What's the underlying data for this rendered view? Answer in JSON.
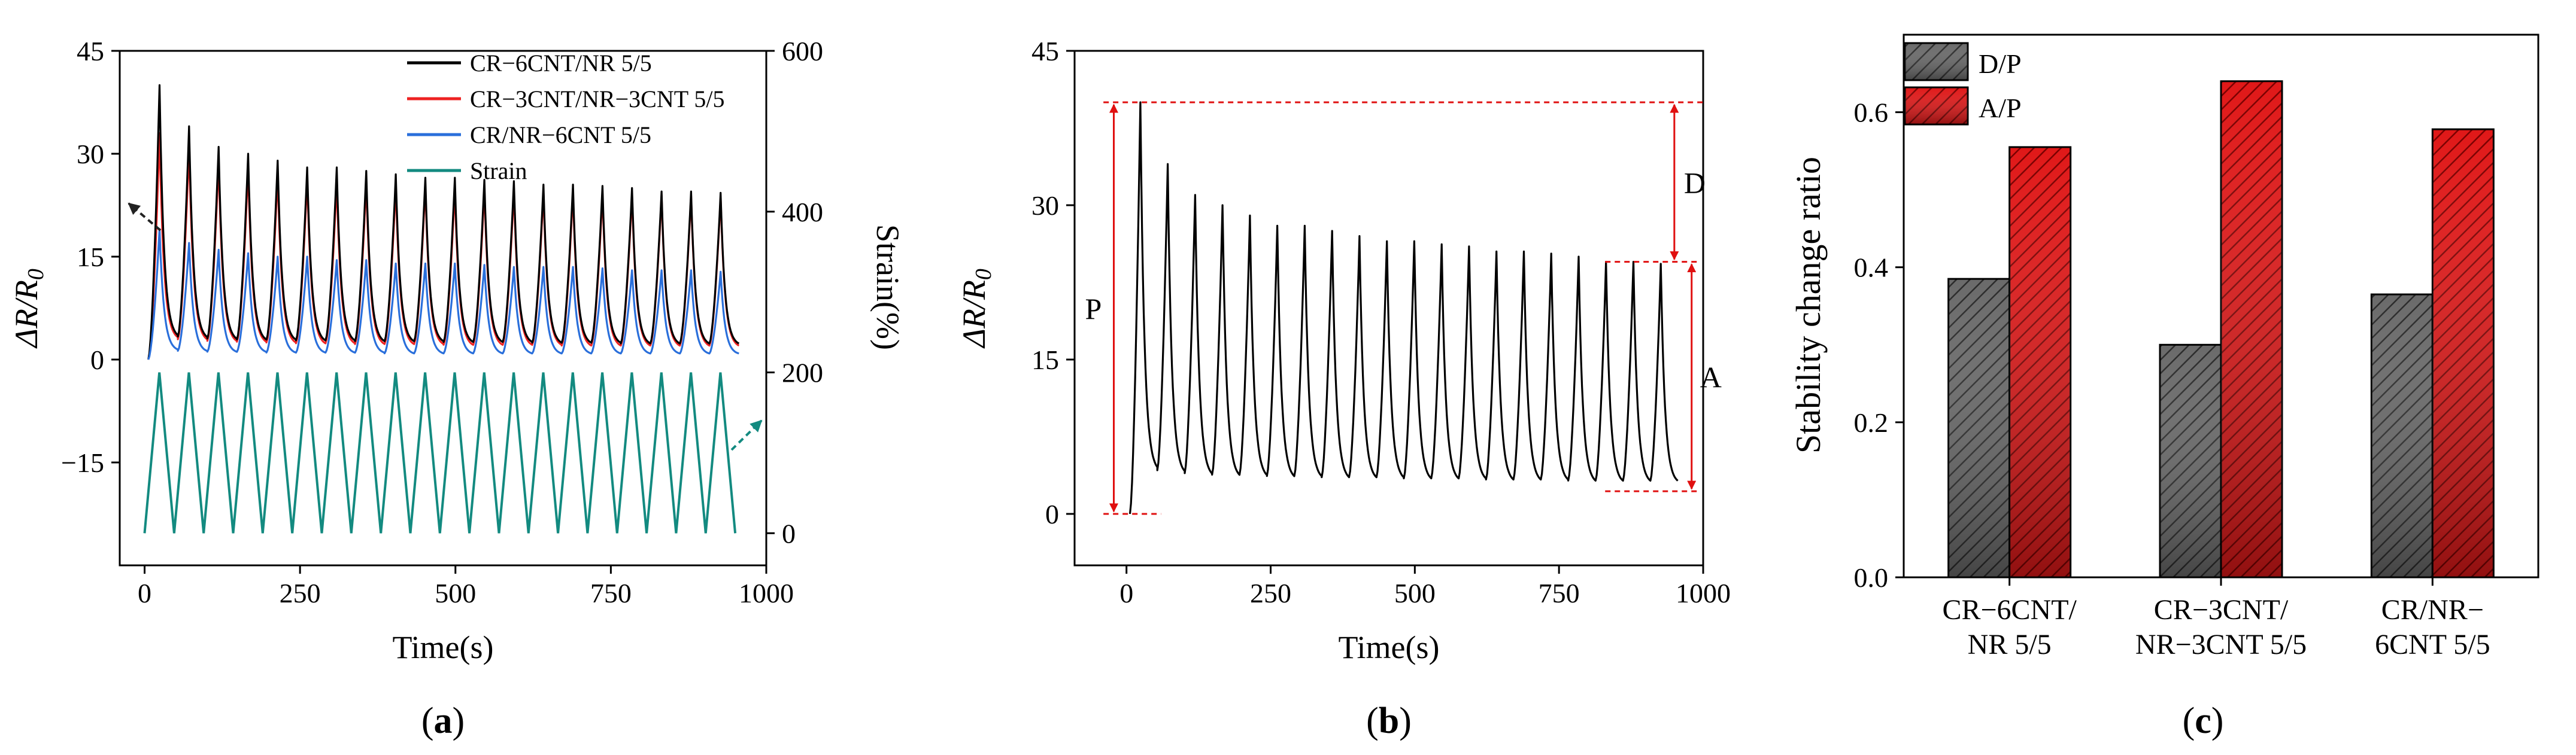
{
  "colors": {
    "black": "#000000",
    "red": "#ee2222",
    "blue": "#2a6fdb",
    "teal": "#138a80",
    "annot": "#e01010",
    "bar_dark": "#555555",
    "bar_red": "#cc0000"
  },
  "panels": {
    "a": {
      "label_open": "(",
      "label_letter": "a",
      "label_close": ")"
    },
    "b": {
      "label_open": "(",
      "label_letter": "b",
      "label_close": ")"
    },
    "c": {
      "label_open": "(",
      "label_letter": "c",
      "label_close": ")"
    }
  },
  "chart_data": [
    {
      "id": "a",
      "type": "line",
      "xlabel": "Time(s)",
      "ylabel": "ΔR/R0",
      "ylabel_main": "ΔR/R",
      "ylabel_sub": "0",
      "y2label": "Strain(%)",
      "xlim": [
        -40,
        1000
      ],
      "ylim": [
        -30,
        45
      ],
      "y2lim": [
        -40,
        600
      ],
      "xticks": [
        0,
        250,
        500,
        750,
        1000
      ],
      "yticks": [
        -15,
        0,
        15,
        30,
        45
      ],
      "y2ticks": [
        0,
        200,
        400,
        600
      ],
      "xtick_labels": [
        "0",
        "250",
        "500",
        "750",
        "1000"
      ],
      "ytick_labels": [
        "−15",
        "0",
        "15",
        "30",
        "45"
      ],
      "y2tick_labels": [
        "0",
        "200",
        "400",
        "600"
      ],
      "period_s": 47.5,
      "cycles": 20,
      "legend_position": "top-right",
      "series": [
        {
          "name": "CR−6CNT/NR 5/5",
          "color": "#000000",
          "axis": "left",
          "peaks": [
            40,
            34,
            31,
            30,
            29,
            28,
            28,
            27.5,
            27,
            26.5,
            26.5,
            26.2,
            26,
            25.5,
            25.5,
            25.3,
            25,
            24.5,
            24.5,
            24.3
          ],
          "baseline": [
            3,
            2.8,
            2.6,
            2.5,
            2.5,
            2.4,
            2.4,
            2.3,
            2.3,
            2.3,
            2.2,
            2.2,
            2.2,
            2.1,
            2.1,
            2.1,
            2.0,
            2.0,
            2.0,
            2.0
          ]
        },
        {
          "name": "CR−3CNT/NR−3CNT 5/5",
          "color": "#ee2222",
          "axis": "left",
          "peaks": [
            33,
            31,
            29,
            28,
            27,
            26.5,
            26,
            26,
            25.5,
            25.5,
            25,
            25,
            24.8,
            24.5,
            24.5,
            24.3,
            24.2,
            24,
            24,
            23.8
          ],
          "baseline": [
            2.8,
            2.5,
            2.3,
            2.2,
            2.1,
            2.0,
            2.0,
            1.9,
            1.9,
            1.9,
            1.8,
            1.8,
            1.8,
            1.8,
            1.7,
            1.7,
            1.7,
            1.7,
            1.7,
            1.7
          ]
        },
        {
          "name": "CR/NR−6CNT 5/5",
          "color": "#2a6fdb",
          "axis": "left",
          "peaks": [
            19,
            17,
            16,
            15.5,
            15,
            15,
            14.5,
            14.5,
            14,
            14,
            14,
            13.8,
            13.5,
            13.5,
            13.5,
            13.3,
            13,
            13,
            13,
            12.8
          ],
          "baseline": [
            1.2,
            1.0,
            0.9,
            0.9,
            0.8,
            0.8,
            0.8,
            0.8,
            0.7,
            0.7,
            0.7,
            0.7,
            0.7,
            0.7,
            0.7,
            0.7,
            0.7,
            0.7,
            0.7,
            0.7
          ]
        },
        {
          "name": "Strain",
          "color": "#138a80",
          "axis": "right",
          "min": 0,
          "max": 200
        }
      ]
    },
    {
      "id": "b",
      "type": "line",
      "xlabel": "Time(s)",
      "ylabel": "ΔR/R0",
      "ylabel_main": "ΔR/R",
      "ylabel_sub": "0",
      "xlim": [
        -90,
        1000
      ],
      "ylim": [
        -5,
        45
      ],
      "xticks": [
        0,
        250,
        500,
        750,
        1000
      ],
      "yticks": [
        0,
        15,
        30,
        45
      ],
      "xtick_labels": [
        "0",
        "250",
        "500",
        "750",
        "1000"
      ],
      "ytick_labels": [
        "0",
        "15",
        "30",
        "45"
      ],
      "period_s": 47.5,
      "cycles": 20,
      "series": [
        {
          "name": "CR−6CNT/NR 5/5",
          "color": "#000000",
          "peaks": [
            40,
            34,
            31,
            30,
            29,
            28,
            28,
            27.5,
            27,
            26.5,
            26.5,
            26.2,
            26,
            25.5,
            25.5,
            25.3,
            25,
            24.5,
            24.5,
            24.3
          ],
          "baseline": [
            4,
            3.7,
            3.5,
            3.4,
            3.4,
            3.3,
            3.3,
            3.2,
            3.2,
            3.2,
            3.1,
            3.1,
            3.1,
            3.0,
            3.0,
            3.0,
            2.9,
            2.9,
            2.9,
            2.9
          ]
        }
      ],
      "annotations": [
        {
          "label": "P",
          "from": 0,
          "to": 40
        },
        {
          "label": "D",
          "from": 24.5,
          "to": 40
        },
        {
          "label": "A",
          "from": 2.2,
          "to": 24.5
        }
      ]
    },
    {
      "id": "c",
      "type": "bar",
      "ylabel": "Stability change ratio",
      "ylim": [
        0,
        0.7
      ],
      "yticks": [
        0.0,
        0.2,
        0.4,
        0.6
      ],
      "ytick_labels": [
        "0.0",
        "0.2",
        "0.4",
        "0.6"
      ],
      "categories": [
        [
          "CR−6CNT/",
          "NR 5/5"
        ],
        [
          "CR−3CNT/",
          "NR−3CNT 5/5"
        ],
        [
          "CR/NR−",
          "6CNT 5/5"
        ]
      ],
      "legend_position": "top-left",
      "series": [
        {
          "name": "D/P",
          "color": "#555555",
          "values": [
            0.385,
            0.3,
            0.365
          ]
        },
        {
          "name": "A/P",
          "color": "#cc0000",
          "values": [
            0.555,
            0.64,
            0.578
          ]
        }
      ]
    }
  ]
}
